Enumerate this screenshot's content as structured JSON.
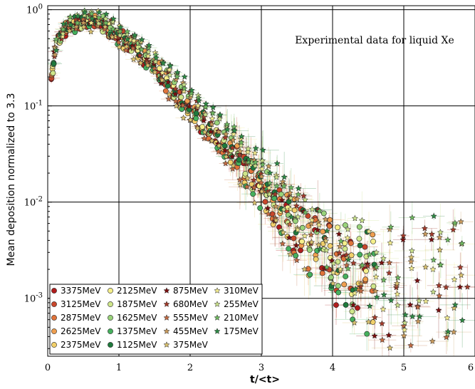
{
  "chart_data": {
    "type": "scatter",
    "title": "Experimental data for liquid Xe",
    "xlabel": "t/<t>",
    "ylabel": "Mean deposition normalized to 3.3",
    "xlim": [
      0,
      6
    ],
    "ylim": [
      0.00025,
      1.1
    ],
    "yscale": "log",
    "grid": true,
    "legend_position": "bottom-left",
    "x_tick_labels": [
      "0",
      "1",
      "2",
      "3",
      "4",
      "5",
      "6"
    ],
    "y_tick_labels": [
      {
        "value": 1,
        "base": "10",
        "exp": "0"
      },
      {
        "value": 0.1,
        "base": "10",
        "exp": "-1"
      },
      {
        "value": 0.01,
        "base": "10",
        "exp": "-2"
      },
      {
        "value": 0.001,
        "base": "10",
        "exp": "-3"
      }
    ],
    "profile": {
      "x": [
        0.05,
        0.1,
        0.2,
        0.3,
        0.4,
        0.5,
        0.6,
        0.7,
        0.8,
        0.9,
        1.0,
        1.2,
        1.4,
        1.6,
        1.8,
        2.0,
        2.2,
        2.4,
        2.6,
        2.8,
        3.0,
        3.2,
        3.4,
        3.6,
        3.8,
        4.0,
        4.2,
        4.4,
        4.6,
        4.8,
        5.0,
        5.2,
        5.4,
        5.6,
        5.8
      ],
      "y": [
        0.18,
        0.38,
        0.55,
        0.66,
        0.72,
        0.74,
        0.75,
        0.73,
        0.68,
        0.6,
        0.52,
        0.4,
        0.29,
        0.2,
        0.135,
        0.095,
        0.065,
        0.045,
        0.031,
        0.021,
        0.014,
        0.0095,
        0.0065,
        0.0047,
        0.0034,
        0.0026,
        0.002,
        0.0016,
        0.0013,
        0.0011,
        0.001,
        0.0009,
        0.0009,
        0.0009,
        0.0009
      ]
    },
    "series": [
      {
        "name": "3375MeV",
        "marker": "circle",
        "color": "#b01c1c",
        "offset": -0.06
      },
      {
        "name": "3125MeV",
        "marker": "circle",
        "color": "#c8472b",
        "offset": 0.05
      },
      {
        "name": "2875MeV",
        "marker": "circle",
        "color": "#e0733a",
        "offset": -0.04
      },
      {
        "name": "2625MeV",
        "marker": "circle",
        "color": "#ee9e4f",
        "offset": 0.08
      },
      {
        "name": "2375MeV",
        "marker": "circle",
        "color": "#f2d06a",
        "offset": -0.09
      },
      {
        "name": "2125MeV",
        "marker": "circle",
        "color": "#f5ef8a",
        "offset": 0.02
      },
      {
        "name": "1875MeV",
        "marker": "circle",
        "color": "#cfe68a",
        "offset": -0.02
      },
      {
        "name": "1625MeV",
        "marker": "circle",
        "color": "#99d37a",
        "offset": 0.1
      },
      {
        "name": "1375MeV",
        "marker": "circle",
        "color": "#45b05d",
        "offset": -0.07
      },
      {
        "name": "1125MeV",
        "marker": "circle",
        "color": "#1e7a3c",
        "offset": 0.04
      },
      {
        "name": "875MeV",
        "marker": "star",
        "color": "#7a1010",
        "offset": 0.0
      },
      {
        "name": "680MeV",
        "marker": "star",
        "color": "#a23a2a",
        "offset": 0.12
      },
      {
        "name": "555MeV",
        "marker": "star",
        "color": "#c06a42",
        "offset": -0.11
      },
      {
        "name": "455MeV",
        "marker": "star",
        "color": "#c99a5c",
        "offset": 0.15
      },
      {
        "name": "375MeV",
        "marker": "star",
        "color": "#d8c06e",
        "offset": -0.14
      },
      {
        "name": "310MeV",
        "marker": "star",
        "color": "#f1ea8e",
        "offset": 0.18
      },
      {
        "name": "255MeV",
        "marker": "star",
        "color": "#c9e08a",
        "offset": 0.2
      },
      {
        "name": "210MeV",
        "marker": "star",
        "color": "#6fb860",
        "offset": 0.23
      },
      {
        "name": "175MeV",
        "marker": "star",
        "color": "#2f8a45",
        "offset": 0.26
      }
    ]
  }
}
